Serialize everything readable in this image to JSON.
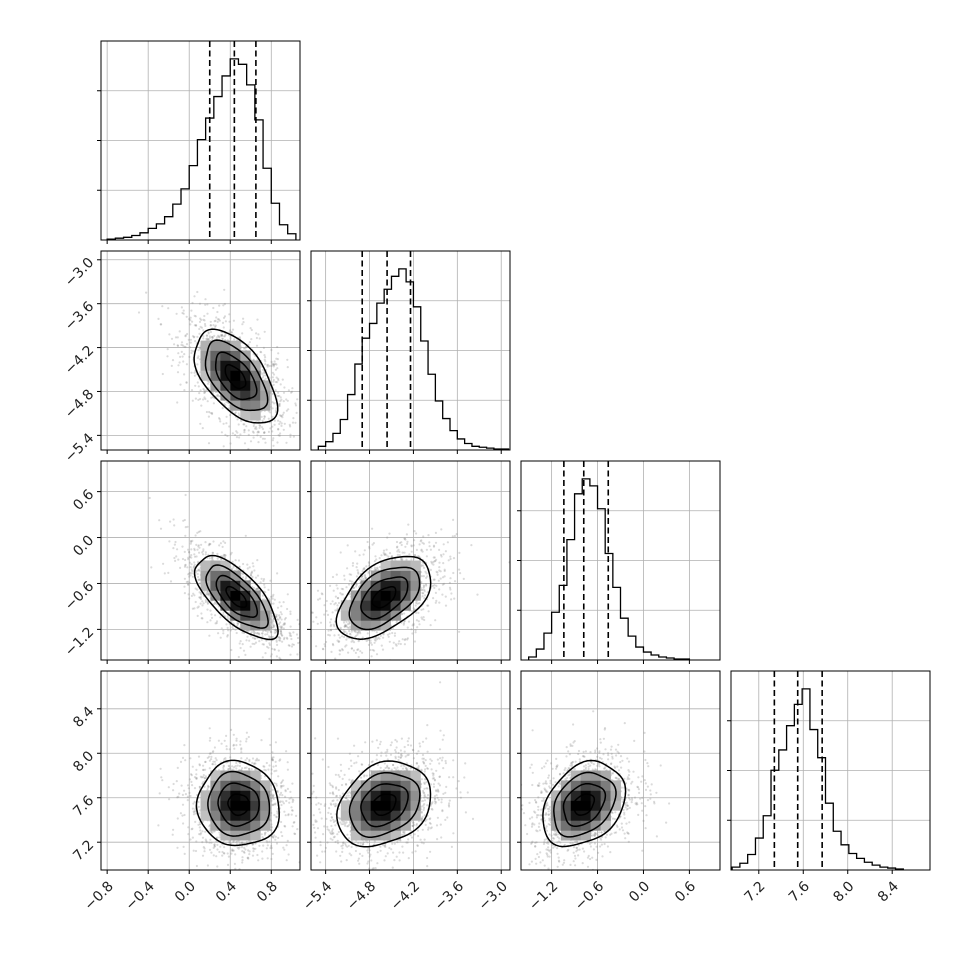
{
  "chart_data": {
    "type": "corner",
    "parameters": 4,
    "tick_labels": {
      "p0": [
        "−0.8",
        "−0.4",
        "0.0",
        "0.4",
        "0.8"
      ],
      "p1": [
        "−5.4",
        "−4.8",
        "−4.2",
        "−3.6",
        "−3.0"
      ],
      "p2": [
        "−1.2",
        "−0.6",
        "0.0",
        "0.6"
      ],
      "p3": [
        "7.2",
        "7.6",
        "8.0",
        "8.4"
      ]
    },
    "ranges": {
      "p0": [
        -0.86,
        1.08
      ],
      "p1": [
        -5.6,
        -2.88
      ],
      "p2": [
        -1.6,
        1.0
      ],
      "p3": [
        6.95,
        8.74
      ]
    },
    "ticks": {
      "p0": [
        -0.8,
        -0.4,
        0.0,
        0.4,
        0.8
      ],
      "p1": [
        -5.4,
        -4.8,
        -4.2,
        -3.6,
        -3.0
      ],
      "p2": [
        -1.2,
        -0.6,
        0.0,
        0.6
      ],
      "p3": [
        7.2,
        7.6,
        8.0,
        8.4
      ]
    },
    "marginals": [
      {
        "param": "p0",
        "quantiles": [
          0.2,
          0.44,
          0.65
        ],
        "bin_edges": [
          -0.8,
          -0.72,
          -0.64,
          -0.56,
          -0.48,
          -0.4,
          -0.32,
          -0.24,
          -0.16,
          -0.08,
          0.0,
          0.08,
          0.16,
          0.24,
          0.32,
          0.4,
          0.48,
          0.56,
          0.64,
          0.72,
          0.8,
          0.88,
          0.96,
          1.04
        ],
        "counts": [
          1,
          2,
          3,
          5,
          8,
          13,
          18,
          26,
          40,
          57,
          83,
          112,
          136,
          160,
          183,
          202,
          196,
          173,
          134,
          80,
          41,
          17,
          7
        ]
      },
      {
        "param": "p1",
        "quantiles": [
          -4.9,
          -4.56,
          -4.24
        ],
        "bin_edges": [
          -5.5,
          -5.4,
          -5.3,
          -5.2,
          -5.1,
          -5.0,
          -4.9,
          -4.8,
          -4.7,
          -4.6,
          -4.5,
          -4.4,
          -4.3,
          -4.2,
          -4.1,
          -4.0,
          -3.9,
          -3.8,
          -3.7,
          -3.6,
          -3.5,
          -3.4,
          -3.3,
          -3.2,
          -3.1,
          -3.0,
          -2.9
        ],
        "counts": [
          4,
          9,
          18,
          33,
          60,
          93,
          121,
          137,
          159,
          174,
          188,
          196,
          182,
          155,
          118,
          82,
          53,
          34,
          21,
          12,
          7,
          4,
          3,
          2,
          1,
          1
        ]
      },
      {
        "param": "p2",
        "quantiles": [
          -1.04,
          -0.78,
          -0.46
        ],
        "bin_edges": [
          -1.5,
          -1.4,
          -1.3,
          -1.2,
          -1.1,
          -1.0,
          -0.9,
          -0.8,
          -0.7,
          -0.6,
          -0.5,
          -0.4,
          -0.3,
          -0.2,
          -0.1,
          0.0,
          0.1,
          0.2,
          0.3,
          0.4,
          0.5,
          0.6
        ],
        "counts": [
          3,
          11,
          27,
          48,
          75,
          121,
          167,
          182,
          175,
          152,
          107,
          73,
          42,
          24,
          13,
          8,
          5,
          3,
          2,
          1,
          1
        ]
      },
      {
        "param": "p3",
        "quantiles": [
          7.34,
          7.55,
          7.77
        ],
        "bin_edges": [
          6.96,
          7.03,
          7.1,
          7.17,
          7.24,
          7.31,
          7.38,
          7.45,
          7.52,
          7.59,
          7.66,
          7.73,
          7.8,
          7.87,
          7.94,
          8.01,
          8.08,
          8.15,
          8.22,
          8.29,
          8.36,
          8.43,
          8.5
        ],
        "counts": [
          3,
          7,
          16,
          33,
          56,
          103,
          124,
          149,
          171,
          187,
          145,
          116,
          69,
          40,
          26,
          17,
          12,
          8,
          5,
          3,
          2,
          1
        ]
      }
    ],
    "pairs": [
      {
        "x": "p0",
        "y": "p1",
        "center": [
          0.45,
          -4.6
        ],
        "sd": [
          0.2,
          0.32
        ],
        "rho": -0.55
      },
      {
        "x": "p0",
        "y": "p2",
        "center": [
          0.46,
          -0.78
        ],
        "sd": [
          0.2,
          0.27
        ],
        "rho": -0.68
      },
      {
        "x": "p1",
        "y": "p2",
        "center": [
          -4.6,
          -0.78
        ],
        "sd": [
          0.32,
          0.27
        ],
        "rho": 0.5
      },
      {
        "x": "p0",
        "y": "p3",
        "center": [
          0.48,
          7.54
        ],
        "sd": [
          0.2,
          0.19
        ],
        "rho": -0.05
      },
      {
        "x": "p1",
        "y": "p3",
        "center": [
          -4.6,
          7.54
        ],
        "sd": [
          0.32,
          0.19
        ],
        "rho": 0.25
      },
      {
        "x": "p2",
        "y": "p3",
        "center": [
          -0.78,
          7.54
        ],
        "sd": [
          0.27,
          0.19
        ],
        "rho": 0.3
      }
    ],
    "contour_levels": [
      "0.5 sigma",
      "1 sigma",
      "1.5 sigma",
      "2 sigma"
    ],
    "grid": true,
    "colors": {
      "hist_line": "#000000",
      "points": "#888888",
      "grid": "#b0b0b0",
      "density_dark": "#000000"
    }
  }
}
